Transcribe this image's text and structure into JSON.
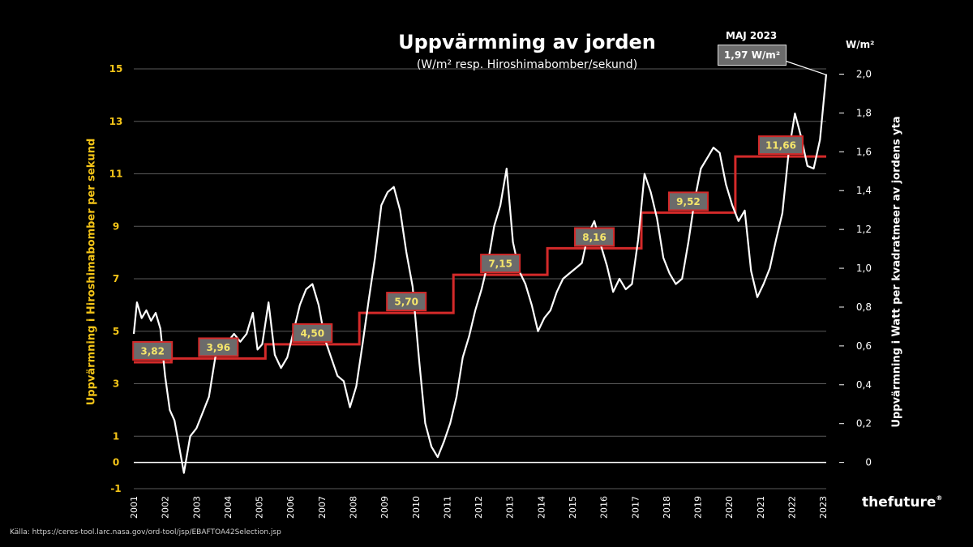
{
  "title": "Uppvärmning av jorden",
  "subtitle": "(W/m² resp. Hiroshimabomber/sekund)",
  "ylabel_left": "Uppvärmning i Hiroshimabomber per sekund",
  "ylabel_right": "Uppvärmning i Watt per kvadratmeer  av jordens yta",
  "unit_right": "W/m²",
  "annotation": {
    "label": "MAJ 2023",
    "value": "1,97 W/m²"
  },
  "source": "Källa: https://ceres-tool.larc.nasa.gov/ord-tool/jsp/EBAFTOA42Selection.jsp",
  "brand": "thefuture",
  "colors": {
    "left_axis": "#f5c518",
    "line": "#ffffff",
    "step": "#d42a2a",
    "box_bg": "#6b6b6b",
    "box_text": "#f5e66b"
  },
  "chart_data": {
    "type": "line",
    "x_ticks": [
      "2001",
      "2002",
      "2003",
      "2004",
      "2005",
      "2006",
      "2007",
      "2008",
      "2009",
      "2010",
      "2011",
      "2012",
      "2013",
      "2014",
      "2015",
      "2016",
      "2017",
      "2018",
      "2019",
      "2020",
      "2021",
      "2022",
      "2023"
    ],
    "y_left_ticks": [
      "-1",
      "0",
      "1",
      "3",
      "5",
      "7",
      "9",
      "11",
      "13",
      "15"
    ],
    "y_right_ticks": [
      "0",
      "0,2",
      "0,4",
      "0,6",
      "0,8",
      "1,0",
      "1,2",
      "1,4",
      "1,6",
      "1,8",
      "2,0"
    ],
    "y_left_range": [
      -1,
      15
    ],
    "y_right_range": [
      0,
      2.0
    ],
    "xlim": [
      2001,
      2023.1
    ],
    "grid": true,
    "series": [
      {
        "type": "line",
        "x": [
          2001.0,
          2001.1,
          2001.25,
          2001.4,
          2001.55,
          2001.7,
          2001.85,
          2002.0,
          2002.15,
          2002.3,
          2002.45,
          2002.6,
          2002.8,
          2003.0,
          2003.2,
          2003.4,
          2003.6,
          2003.8,
          2004.0,
          2004.2,
          2004.4,
          2004.6,
          2004.8,
          2004.95,
          2005.1,
          2005.3,
          2005.5,
          2005.7,
          2005.9,
          2006.1,
          2006.3,
          2006.5,
          2006.7,
          2006.9,
          2007.1,
          2007.3,
          2007.5,
          2007.7,
          2007.9,
          2008.1,
          2008.3,
          2008.5,
          2008.7,
          2008.9,
          2009.1,
          2009.3,
          2009.5,
          2009.7,
          2009.9,
          2010.1,
          2010.3,
          2010.5,
          2010.7,
          2010.9,
          2011.1,
          2011.3,
          2011.5,
          2011.7,
          2011.9,
          2012.1,
          2012.3,
          2012.5,
          2012.7,
          2012.9,
          2013.1,
          2013.3,
          2013.5,
          2013.7,
          2013.9,
          2014.1,
          2014.3,
          2014.5,
          2014.7,
          2014.9,
          2015.1,
          2015.3,
          2015.5,
          2015.7,
          2015.9,
          2016.1,
          2016.3,
          2016.5,
          2016.7,
          2016.9,
          2017.1,
          2017.3,
          2017.5,
          2017.7,
          2017.9,
          2018.1,
          2018.3,
          2018.5,
          2018.7,
          2018.9,
          2019.1,
          2019.3,
          2019.5,
          2019.7,
          2019.9,
          2020.1,
          2020.3,
          2020.5,
          2020.7,
          2020.9,
          2021.1,
          2021.3,
          2021.5,
          2021.7,
          2021.9,
          2022.1,
          2022.3,
          2022.5,
          2022.7,
          2022.9,
          2023.1
        ],
        "values": [
          4.9,
          6.1,
          5.5,
          5.8,
          5.4,
          5.7,
          5.1,
          3.3,
          2.0,
          1.6,
          0.6,
          -0.4,
          1.0,
          1.3,
          1.9,
          2.5,
          4.0,
          4.4,
          4.6,
          4.9,
          4.6,
          4.9,
          5.7,
          4.3,
          4.5,
          6.1,
          4.1,
          3.6,
          4.0,
          5.0,
          6.0,
          6.6,
          6.8,
          6.0,
          4.7,
          4.0,
          3.3,
          3.1,
          2.1,
          2.9,
          4.5,
          6.2,
          7.8,
          9.8,
          10.3,
          10.5,
          9.6,
          8.0,
          6.7,
          4.0,
          1.5,
          0.6,
          0.2,
          0.8,
          1.5,
          2.5,
          4.0,
          4.8,
          5.8,
          6.6,
          7.6,
          9.0,
          9.8,
          11.2,
          8.4,
          7.3,
          6.8,
          6.0,
          5.0,
          5.5,
          5.8,
          6.5,
          7.0,
          7.2,
          7.4,
          7.6,
          8.7,
          9.2,
          8.3,
          7.5,
          6.5,
          7.0,
          6.6,
          6.8,
          8.5,
          11.0,
          10.3,
          9.3,
          7.8,
          7.2,
          6.8,
          7.0,
          8.4,
          10.0,
          11.2,
          11.6,
          12.0,
          11.8,
          10.6,
          9.8,
          9.2,
          9.6,
          7.3,
          6.3,
          6.8,
          7.4,
          8.5,
          9.5,
          11.8,
          13.3,
          12.4,
          11.3,
          11.2,
          12.3,
          14.8
        ]
      },
      {
        "type": "step",
        "segments": [
          {
            "x_start": 2001.0,
            "x_end": 2002.2,
            "value": 3.82,
            "label": "3,82"
          },
          {
            "x_start": 2002.2,
            "x_end": 2005.2,
            "value": 3.96,
            "label": "3,96"
          },
          {
            "x_start": 2005.2,
            "x_end": 2008.2,
            "value": 4.5,
            "label": "4,50"
          },
          {
            "x_start": 2008.2,
            "x_end": 2011.2,
            "value": 5.7,
            "label": "5,70"
          },
          {
            "x_start": 2011.2,
            "x_end": 2014.2,
            "value": 7.15,
            "label": "7,15"
          },
          {
            "x_start": 2014.2,
            "x_end": 2017.2,
            "value": 8.16,
            "label": "8,16"
          },
          {
            "x_start": 2017.2,
            "x_end": 2020.2,
            "value": 9.52,
            "label": "9,52"
          },
          {
            "x_start": 2020.2,
            "x_end": 2023.1,
            "value": 11.66,
            "label": "11,66"
          }
        ]
      }
    ]
  }
}
